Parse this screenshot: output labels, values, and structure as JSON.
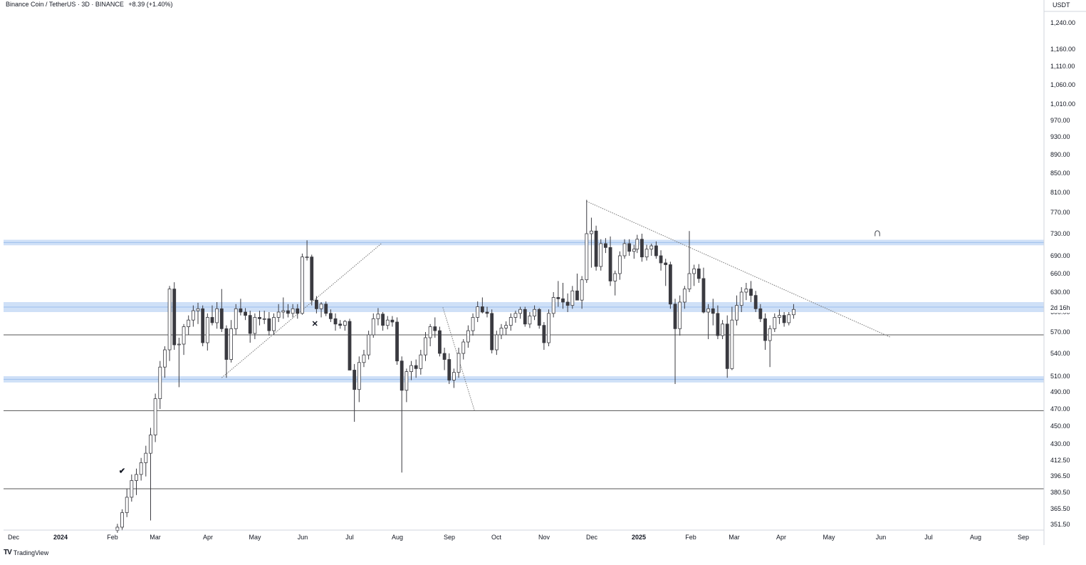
{
  "header": {
    "symbol": "Binance Coin / TetherUS · 3D · BINANCE",
    "change": "+8.39 (+1.40%)"
  },
  "axis": {
    "currency": "USDT",
    "countdown_label": "2d 16h",
    "price_ticks": [
      "1,240.00",
      "1,160.00",
      "1,110.00",
      "1,060.00",
      "1,010.00",
      "970.00",
      "930.00",
      "890.00",
      "850.00",
      "810.00",
      "770.00",
      "730.00",
      "690.00",
      "660.00",
      "630.00",
      "600.00",
      "570.00",
      "540.00",
      "510.00",
      "490.00",
      "470.00",
      "450.00",
      "430.00",
      "412.50",
      "396.50",
      "380.50",
      "365.50",
      "351.50"
    ],
    "time_ticks": [
      {
        "label": "Dec",
        "bold": false
      },
      {
        "label": "2024",
        "bold": true
      },
      {
        "label": "Feb",
        "bold": false
      },
      {
        "label": "Mar",
        "bold": false
      },
      {
        "label": "Apr",
        "bold": false
      },
      {
        "label": "May",
        "bold": false
      },
      {
        "label": "Jun",
        "bold": false
      },
      {
        "label": "Jul",
        "bold": false
      },
      {
        "label": "Aug",
        "bold": false
      },
      {
        "label": "Sep",
        "bold": false
      },
      {
        "label": "Oct",
        "bold": false
      },
      {
        "label": "Nov",
        "bold": false
      },
      {
        "label": "Dec",
        "bold": false
      },
      {
        "label": "2025",
        "bold": true
      },
      {
        "label": "Feb",
        "bold": false
      },
      {
        "label": "Mar",
        "bold": false
      },
      {
        "label": "Apr",
        "bold": false
      },
      {
        "label": "May",
        "bold": false
      },
      {
        "label": "Jun",
        "bold": false
      },
      {
        "label": "Jul",
        "bold": false
      },
      {
        "label": "Aug",
        "bold": false
      },
      {
        "label": "Sep",
        "bold": false
      }
    ]
  },
  "brand": {
    "logo": "TV",
    "name": "TradingView"
  },
  "colors": {
    "up_body": "#ffffff",
    "down_body": "#3a3a40",
    "wick": "#3a3a40",
    "zone": "#cfe0f7",
    "zone_line": "#9ec1ec",
    "level_line": "#555555"
  },
  "icons": [
    "checkmark-icon",
    "x-mark-icon",
    "magnet-icon"
  ],
  "chart_data": {
    "type": "candlestick",
    "symbol": "BNBUSDT",
    "timeframe": "3D",
    "scale": "log",
    "ylim": [
      345,
      1300
    ],
    "zones": [
      [
        709,
        719
      ],
      [
        600,
        615
      ],
      [
        502,
        510
      ]
    ],
    "levels": [
      566,
      468,
      384
    ],
    "trendlines": [
      {
        "from": [
          "2024-04-12",
          508
        ],
        "to": [
          "2024-07-22",
          712
        ]
      },
      {
        "from": [
          "2024-11-29",
          792
        ],
        "to": [
          "2025-06-09",
          563
        ]
      },
      {
        "from": [
          "2024-08-30",
          607
        ],
        "to": [
          "2024-09-19",
          468
        ]
      }
    ],
    "markers": [
      {
        "icon": "checkmark-icon",
        "date": "2024-02-09",
        "price": 402
      },
      {
        "icon": "x-mark-icon",
        "date": "2024-06-10",
        "price": 583
      },
      {
        "icon": "magnet-icon",
        "date": "2025-06-01",
        "price": 731
      }
    ],
    "candles": [
      [
        "2024-02-06",
        346,
        352,
        344,
        349
      ],
      [
        "2024-02-09",
        349,
        365,
        346,
        362
      ],
      [
        "2024-02-12",
        362,
        384,
        358,
        376
      ],
      [
        "2024-02-15",
        376,
        398,
        372,
        392
      ],
      [
        "2024-02-18",
        392,
        404,
        378,
        398
      ],
      [
        "2024-02-21",
        398,
        415,
        392,
        410
      ],
      [
        "2024-02-24",
        410,
        428,
        396,
        420
      ],
      [
        "2024-02-27",
        420,
        448,
        355,
        440
      ],
      [
        "2024-03-01",
        440,
        488,
        432,
        482
      ],
      [
        "2024-03-04",
        482,
        530,
        470,
        522
      ],
      [
        "2024-03-07",
        522,
        550,
        508,
        545
      ],
      [
        "2024-03-10",
        545,
        640,
        530,
        635
      ],
      [
        "2024-03-13",
        635,
        646,
        545,
        552
      ],
      [
        "2024-03-16",
        552,
        562,
        496,
        553
      ],
      [
        "2024-03-19",
        553,
        582,
        538,
        578
      ],
      [
        "2024-03-22",
        578,
        595,
        566,
        588
      ],
      [
        "2024-03-25",
        588,
        610,
        578,
        602
      ],
      [
        "2024-03-28",
        602,
        614,
        582,
        605
      ],
      [
        "2024-03-31",
        605,
        610,
        550,
        555
      ],
      [
        "2024-04-03",
        555,
        598,
        544,
        592
      ],
      [
        "2024-04-06",
        592,
        610,
        580,
        584
      ],
      [
        "2024-04-09",
        584,
        615,
        575,
        605
      ],
      [
        "2024-04-12",
        605,
        635,
        570,
        575
      ],
      [
        "2024-04-15",
        575,
        580,
        508,
        532
      ],
      [
        "2024-04-18",
        532,
        588,
        528,
        575
      ],
      [
        "2024-04-21",
        575,
        612,
        566,
        605
      ],
      [
        "2024-04-24",
        605,
        620,
        595,
        600
      ],
      [
        "2024-04-27",
        600,
        606,
        588,
        595
      ],
      [
        "2024-04-30",
        595,
        602,
        555,
        568
      ],
      [
        "2024-05-03",
        568,
        598,
        560,
        592
      ],
      [
        "2024-05-06",
        592,
        602,
        580,
        590
      ],
      [
        "2024-05-09",
        590,
        602,
        582,
        590
      ],
      [
        "2024-05-12",
        590,
        600,
        565,
        572
      ],
      [
        "2024-05-15",
        572,
        598,
        566,
        592
      ],
      [
        "2024-05-18",
        592,
        612,
        585,
        600
      ],
      [
        "2024-05-21",
        600,
        622,
        590,
        602
      ],
      [
        "2024-05-24",
        602,
        612,
        592,
        598
      ],
      [
        "2024-05-27",
        598,
        612,
        592,
        605
      ],
      [
        "2024-05-30",
        605,
        612,
        590,
        598
      ],
      [
        "2024-06-02",
        598,
        694,
        596,
        688
      ],
      [
        "2024-06-05",
        688,
        718,
        682,
        688
      ],
      [
        "2024-06-08",
        688,
        692,
        610,
        618
      ],
      [
        "2024-06-11",
        618,
        624,
        598,
        605
      ],
      [
        "2024-06-14",
        605,
        615,
        592,
        612
      ],
      [
        "2024-06-17",
        612,
        616,
        594,
        598
      ],
      [
        "2024-06-20",
        598,
        604,
        585,
        590
      ],
      [
        "2024-06-23",
        590,
        598,
        572,
        582
      ],
      [
        "2024-06-26",
        582,
        588,
        575,
        580
      ],
      [
        "2024-06-29",
        580,
        588,
        572,
        586
      ],
      [
        "2024-07-02",
        586,
        590,
        518,
        518
      ],
      [
        "2024-07-05",
        518,
        526,
        455,
        493
      ],
      [
        "2024-07-08",
        493,
        536,
        478,
        528
      ],
      [
        "2024-07-11",
        528,
        545,
        522,
        538
      ],
      [
        "2024-07-14",
        538,
        572,
        532,
        566
      ],
      [
        "2024-07-17",
        566,
        598,
        562,
        590
      ],
      [
        "2024-07-20",
        590,
        606,
        580,
        597
      ],
      [
        "2024-07-23",
        597,
        600,
        572,
        580
      ],
      [
        "2024-07-26",
        580,
        594,
        574,
        588
      ],
      [
        "2024-07-29",
        588,
        594,
        578,
        585
      ],
      [
        "2024-08-01",
        585,
        592,
        525,
        530
      ],
      [
        "2024-08-04",
        530,
        536,
        400,
        492
      ],
      [
        "2024-08-07",
        492,
        520,
        478,
        516
      ],
      [
        "2024-08-10",
        516,
        530,
        505,
        524
      ],
      [
        "2024-08-13",
        524,
        532,
        508,
        520
      ],
      [
        "2024-08-16",
        520,
        545,
        512,
        538
      ],
      [
        "2024-08-19",
        538,
        570,
        530,
        562
      ],
      [
        "2024-08-22",
        562,
        582,
        550,
        578
      ],
      [
        "2024-08-25",
        578,
        592,
        562,
        572
      ],
      [
        "2024-08-28",
        572,
        578,
        536,
        540
      ],
      [
        "2024-08-31",
        540,
        548,
        518,
        532
      ],
      [
        "2024-09-03",
        532,
        540,
        500,
        505
      ],
      [
        "2024-09-06",
        505,
        520,
        495,
        515
      ],
      [
        "2024-09-09",
        515,
        548,
        508,
        540
      ],
      [
        "2024-09-12",
        540,
        560,
        532,
        556
      ],
      [
        "2024-09-15",
        556,
        580,
        548,
        572
      ],
      [
        "2024-09-18",
        572,
        598,
        565,
        592
      ],
      [
        "2024-09-21",
        592,
        616,
        585,
        608
      ],
      [
        "2024-09-24",
        608,
        622,
        598,
        600
      ],
      [
        "2024-09-27",
        600,
        608,
        592,
        598
      ],
      [
        "2024-09-30",
        598,
        604,
        540,
        545
      ],
      [
        "2024-10-03",
        545,
        572,
        538,
        566
      ],
      [
        "2024-10-06",
        566,
        582,
        560,
        576
      ],
      [
        "2024-10-09",
        576,
        586,
        566,
        580
      ],
      [
        "2024-10-12",
        580,
        598,
        572,
        592
      ],
      [
        "2024-10-15",
        592,
        602,
        584,
        598
      ],
      [
        "2024-10-18",
        598,
        608,
        590,
        604
      ],
      [
        "2024-10-21",
        604,
        608,
        578,
        582
      ],
      [
        "2024-10-24",
        582,
        600,
        576,
        594
      ],
      [
        "2024-10-27",
        594,
        610,
        588,
        604
      ],
      [
        "2024-10-30",
        604,
        606,
        575,
        580
      ],
      [
        "2024-11-02",
        580,
        585,
        545,
        555
      ],
      [
        "2024-11-05",
        555,
        604,
        550,
        598
      ],
      [
        "2024-11-08",
        598,
        630,
        592,
        622
      ],
      [
        "2024-11-11",
        622,
        648,
        608,
        620
      ],
      [
        "2024-11-14",
        620,
        645,
        605,
        615
      ],
      [
        "2024-11-17",
        615,
        628,
        600,
        610
      ],
      [
        "2024-11-20",
        610,
        640,
        605,
        632
      ],
      [
        "2024-11-23",
        632,
        660,
        620,
        618
      ],
      [
        "2024-11-26",
        618,
        656,
        605,
        650
      ],
      [
        "2024-11-29",
        650,
        795,
        645,
        730
      ],
      [
        "2024-12-02",
        730,
        760,
        670,
        735
      ],
      [
        "2024-12-05",
        735,
        745,
        665,
        672
      ],
      [
        "2024-12-08",
        672,
        720,
        665,
        712
      ],
      [
        "2024-12-11",
        712,
        722,
        695,
        705
      ],
      [
        "2024-12-14",
        705,
        725,
        640,
        648
      ],
      [
        "2024-12-17",
        648,
        665,
        625,
        660
      ],
      [
        "2024-12-20",
        660,
        698,
        650,
        690
      ],
      [
        "2024-12-23",
        690,
        720,
        685,
        712
      ],
      [
        "2024-12-26",
        712,
        720,
        690,
        698
      ],
      [
        "2024-12-29",
        698,
        710,
        685,
        702
      ],
      [
        "2024-12-31",
        702,
        728,
        695,
        720
      ],
      [
        "2025-01-03",
        720,
        730,
        680,
        688
      ],
      [
        "2025-01-06",
        688,
        710,
        682,
        702
      ],
      [
        "2025-01-09",
        702,
        712,
        690,
        708
      ],
      [
        "2025-01-12",
        708,
        716,
        685,
        690
      ],
      [
        "2025-01-15",
        690,
        700,
        665,
        678
      ],
      [
        "2025-01-18",
        678,
        685,
        640,
        675
      ],
      [
        "2025-01-21",
        675,
        680,
        605,
        612
      ],
      [
        "2025-01-24",
        612,
        620,
        500,
        575
      ],
      [
        "2025-01-27",
        575,
        625,
        565,
        615
      ],
      [
        "2025-01-30",
        615,
        640,
        605,
        635
      ],
      [
        "2025-02-02",
        635,
        735,
        630,
        660
      ],
      [
        "2025-02-05",
        660,
        675,
        640,
        668
      ],
      [
        "2025-02-08",
        668,
        676,
        645,
        652
      ],
      [
        "2025-02-11",
        652,
        670,
        598,
        600
      ],
      [
        "2025-02-14",
        600,
        612,
        560,
        605
      ],
      [
        "2025-02-17",
        605,
        620,
        580,
        598
      ],
      [
        "2025-02-20",
        598,
        610,
        560,
        565
      ],
      [
        "2025-02-23",
        565,
        588,
        560,
        582
      ],
      [
        "2025-02-26",
        582,
        595,
        508,
        520
      ],
      [
        "2025-03-01",
        520,
        608,
        518,
        588
      ],
      [
        "2025-03-04",
        588,
        625,
        580,
        610
      ],
      [
        "2025-03-07",
        610,
        638,
        600,
        630
      ],
      [
        "2025-03-10",
        630,
        645,
        618,
        635
      ],
      [
        "2025-03-13",
        635,
        648,
        615,
        625
      ],
      [
        "2025-03-16",
        625,
        632,
        600,
        605
      ],
      [
        "2025-03-19",
        605,
        612,
        585,
        590
      ],
      [
        "2025-03-22",
        590,
        598,
        545,
        558
      ],
      [
        "2025-03-25",
        558,
        580,
        522,
        575
      ],
      [
        "2025-03-28",
        575,
        598,
        570,
        592
      ],
      [
        "2025-03-31",
        592,
        604,
        582,
        595
      ],
      [
        "2025-04-03",
        595,
        600,
        578,
        584
      ],
      [
        "2025-04-06",
        584,
        600,
        580,
        596
      ],
      [
        "2025-04-09",
        596,
        612,
        590,
        604
      ]
    ]
  }
}
